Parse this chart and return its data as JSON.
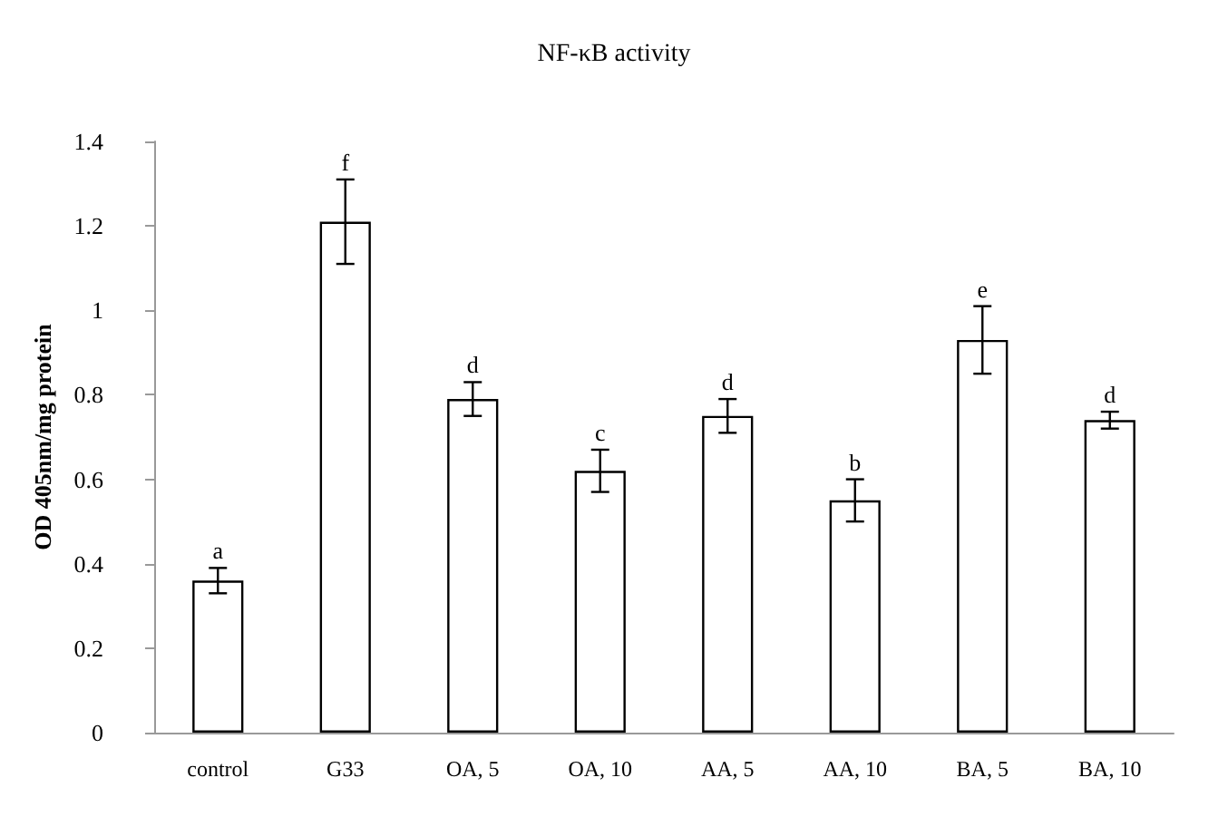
{
  "chart_data": {
    "type": "bar",
    "title": "NF-κB activity",
    "ylabel": "OD 405nm/mg protein",
    "categories": [
      "control",
      "G33",
      "OA, 5",
      "OA, 10",
      "AA, 5",
      "AA, 10",
      "BA, 5",
      "BA, 10"
    ],
    "values": [
      0.36,
      1.21,
      0.79,
      0.62,
      0.75,
      0.55,
      0.93,
      0.74
    ],
    "errors": [
      0.03,
      0.1,
      0.04,
      0.05,
      0.04,
      0.05,
      0.08,
      0.02
    ],
    "color": "#ffffff",
    "ylim": [
      0,
      1.4
    ],
    "yticks": [
      0,
      0.2,
      0.4,
      0.6,
      0.8,
      1,
      1.2,
      1.4
    ],
    "grid": false,
    "annotations": [
      {
        "text": "a",
        "x": "control",
        "y": 0.39
      },
      {
        "text": "f",
        "x": "G33",
        "y": 1.31
      },
      {
        "text": "d",
        "x": "OA, 5",
        "y": 0.83
      },
      {
        "text": "c",
        "x": "OA, 10",
        "y": 0.67
      },
      {
        "text": "d",
        "x": "AA, 5",
        "y": 0.79
      },
      {
        "text": "b",
        "x": "AA, 10",
        "y": 0.6
      },
      {
        "text": "e",
        "x": "BA, 5",
        "y": 1.01
      },
      {
        "text": "d",
        "x": "BA, 10",
        "y": 0.76
      }
    ]
  }
}
